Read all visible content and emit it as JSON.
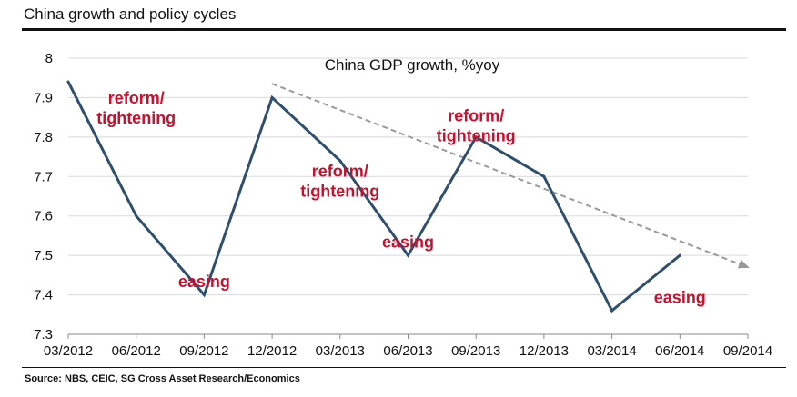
{
  "header": {
    "title": "China growth and policy cycles"
  },
  "footer": {
    "source": "Source: NBS, CEIC, SG Cross Asset Research/Economics"
  },
  "colors": {
    "series": "#2f4f6f",
    "trend": "#999999",
    "annotation": "#c8102e",
    "grid": "#d9d9d9"
  },
  "chart_data": {
    "type": "line",
    "title": "China GDP growth, %yoy",
    "xlabel": "",
    "ylabel": "",
    "ylim": [
      7.3,
      8.0
    ],
    "yticks": [
      "7.3",
      "7.4",
      "7.5",
      "7.6",
      "7.7",
      "7.8",
      "7.9",
      "8"
    ],
    "x": [
      "03/2012",
      "06/2012",
      "09/2012",
      "12/2012",
      "03/2013",
      "06/2013",
      "09/2013",
      "12/2013",
      "03/2014",
      "06/2014",
      "09/2014"
    ],
    "grid": true,
    "legend": "none",
    "series": [
      {
        "values": [
          7.94,
          7.6,
          7.4,
          7.9,
          7.74,
          7.5,
          7.8,
          7.7,
          7.36,
          7.5,
          null
        ]
      }
    ],
    "trend_line": {
      "style": "dashed-arrow",
      "start": {
        "x": "12/2012",
        "y": 7.935
      },
      "end": {
        "x": "09/2014",
        "y": 7.47
      }
    },
    "annotations": [
      {
        "lines": [
          "reform/",
          "tightening"
        ],
        "x": "06/2012",
        "y": 7.885
      },
      {
        "lines": [
          "easing"
        ],
        "x": "09/2012",
        "y": 7.42
      },
      {
        "lines": [
          "reform/",
          "tightening"
        ],
        "x": "03/2013",
        "y": 7.7
      },
      {
        "lines": [
          "easing"
        ],
        "x": "06/2013",
        "y": 7.52
      },
      {
        "lines": [
          "reform/",
          "tightening"
        ],
        "x": "09/2013",
        "y": 7.84
      },
      {
        "lines": [
          "easing"
        ],
        "x": "06/2014",
        "y": 7.38
      }
    ]
  }
}
